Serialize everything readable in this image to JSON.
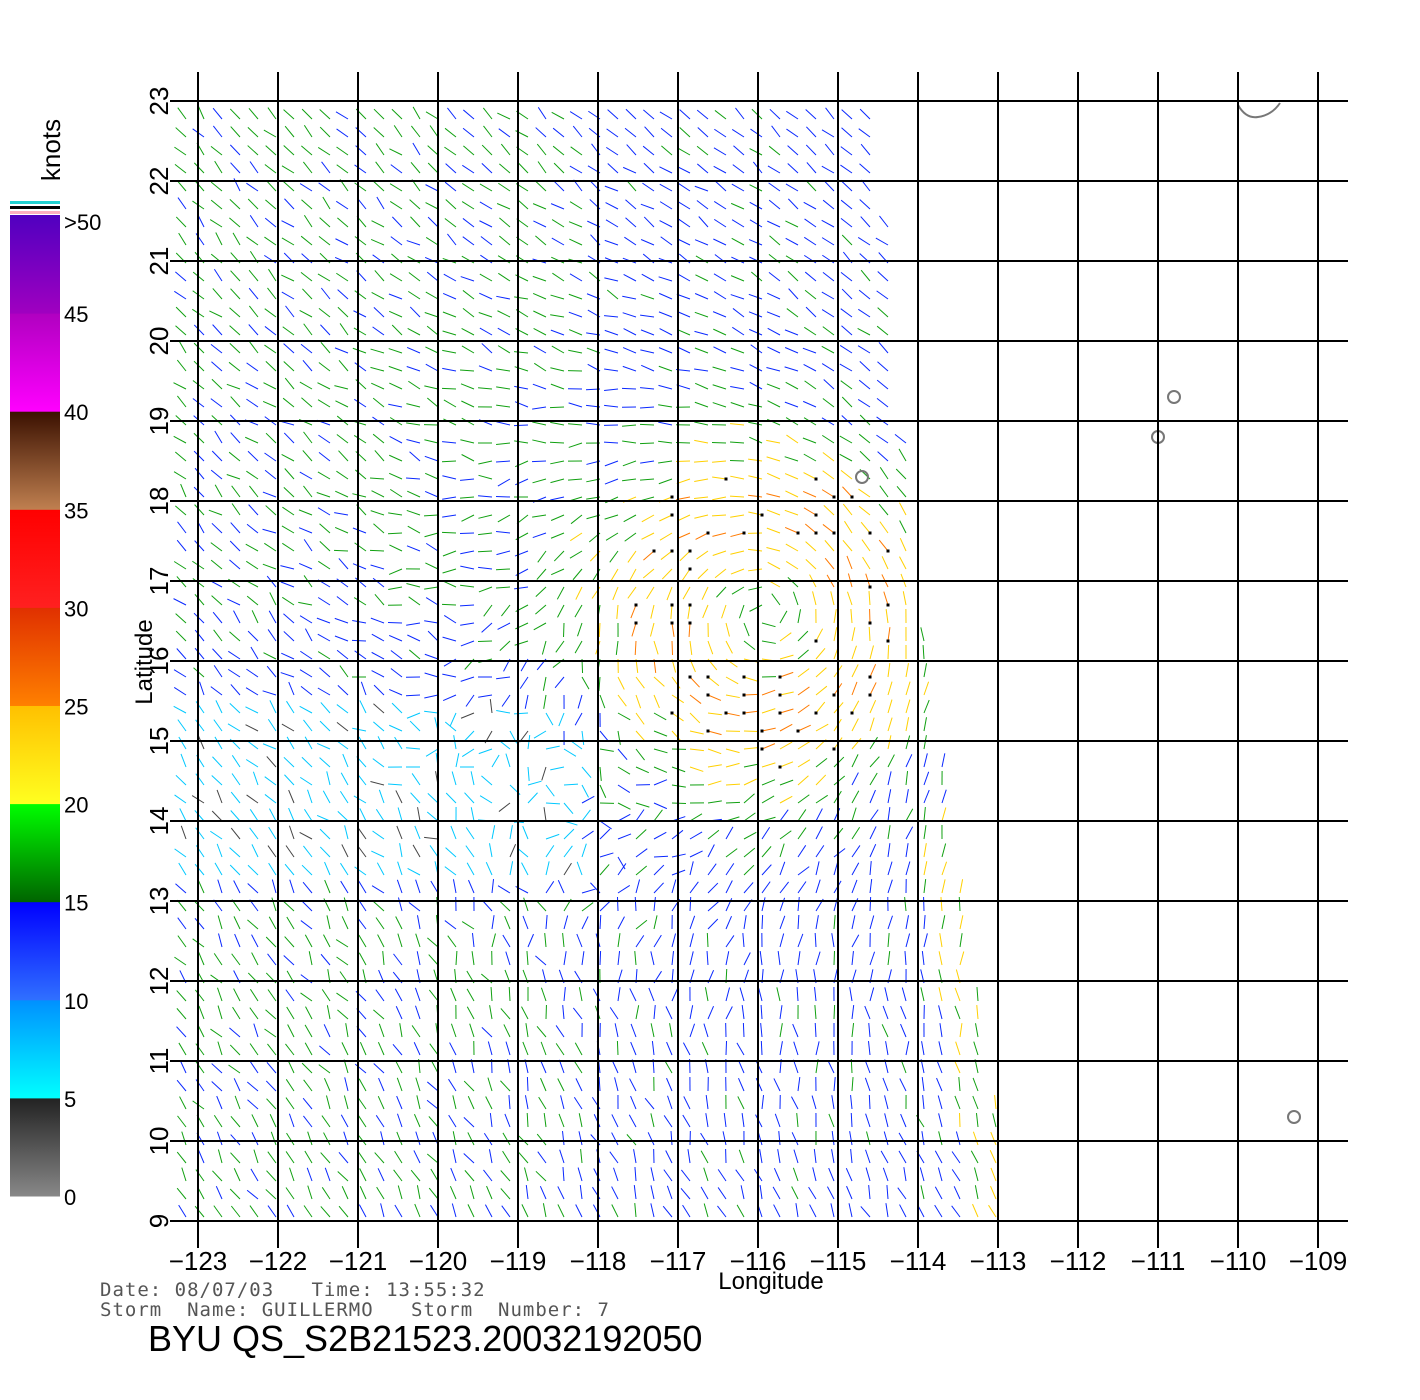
{
  "chart_data": {
    "type": "scatter",
    "title": "BYU  QS_S2B21523.20032192050",
    "xlabel": "Longitude",
    "ylabel": "Latitude",
    "xlim": [
      -123,
      -109
    ],
    "ylim": [
      9,
      23
    ],
    "x_ticks": [
      "-123",
      "-122",
      "-121",
      "-120",
      "-119",
      "-118",
      "-117",
      "-116",
      "-115",
      "-114",
      "-113",
      "-112",
      "-111",
      "-110",
      "-109"
    ],
    "y_ticks": [
      "9",
      "10",
      "11",
      "12",
      "13",
      "14",
      "15",
      "16",
      "17",
      "18",
      "19",
      "20",
      "21",
      "22",
      "23"
    ],
    "grid": true,
    "legend": "left",
    "colorbar": {
      "unit": "knots",
      "labels": [
        "0",
        "5",
        "10",
        "15",
        "20",
        "25",
        "30",
        "35",
        "40",
        "45",
        ">50"
      ],
      "bands": [
        {
          "min": 0,
          "max": 5,
          "colors": [
            "#888888",
            "#222222"
          ]
        },
        {
          "min": 5,
          "max": 10,
          "colors": [
            "#00ffff",
            "#0090ff"
          ]
        },
        {
          "min": 10,
          "max": 15,
          "colors": [
            "#3070ff",
            "#0000ff"
          ]
        },
        {
          "min": 15,
          "max": 20,
          "colors": [
            "#006400",
            "#00ff00"
          ]
        },
        {
          "min": 20,
          "max": 25,
          "colors": [
            "#ffff20",
            "#ffc000"
          ]
        },
        {
          "min": 25,
          "max": 30,
          "colors": [
            "#ff8000",
            "#e03000"
          ]
        },
        {
          "min": 30,
          "max": 35,
          "colors": [
            "#ff2020",
            "#ff0000"
          ]
        },
        {
          "min": 35,
          "max": 40,
          "colors": [
            "#c08050",
            "#3a1000"
          ]
        },
        {
          "min": 40,
          "max": 45,
          "colors": [
            "#ff00ff",
            "#b000c0"
          ]
        },
        {
          "min": 45,
          "max": 50,
          "colors": [
            "#a000c0",
            "#5000c0"
          ]
        }
      ]
    },
    "storm_center": {
      "lon": -115.9,
      "lat": 16.6
    },
    "swath": {
      "right_edge": [
        [
          -114.5,
          23
        ],
        [
          -113.9,
          16
        ],
        [
          -112.8,
          9
        ]
      ]
    },
    "coastline_islands": [
      {
        "lon": -109.9,
        "lat": 22.9
      },
      {
        "lon": -110.8,
        "lat": 19.3
      },
      {
        "lon": -111.0,
        "lat": 18.8
      },
      {
        "lon": -114.7,
        "lat": 18.3
      },
      {
        "lon": -109.3,
        "lat": 10.3
      }
    ]
  },
  "info": {
    "date_line": "Date: 08/07/03   Time: 13:55:32",
    "storm_line": "Storm  Name: GUILLERMO   Storm  Number: 7"
  }
}
